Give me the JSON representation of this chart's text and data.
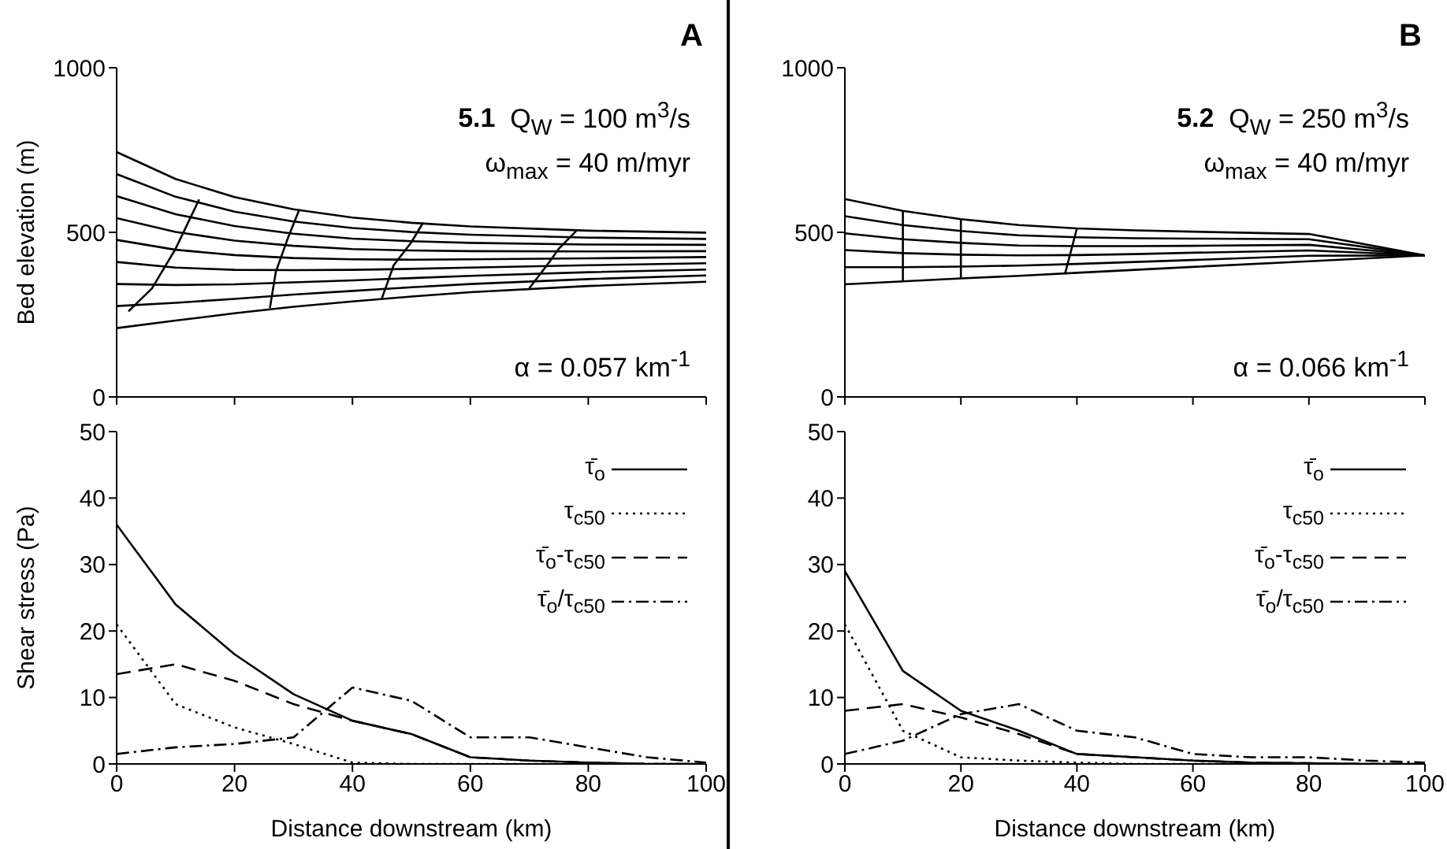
{
  "chart_data": [
    {
      "type": "line",
      "title": "A",
      "ylabel": "Bed elevation (m)",
      "annotations": [
        "5.1  Q$_{W}$ = 100 m$^{3}$/s",
        "ω$_{max}$ = 40 m/myr",
        "α = 0.057 km$^{-1}$"
      ],
      "x": [
        0,
        10,
        20,
        30,
        40,
        50,
        60,
        80,
        100
      ],
      "xlim": [
        0,
        100
      ],
      "xticks": [
        {
          "value": 0,
          "label": null
        },
        {
          "value": 20,
          "label": null
        },
        {
          "value": 40,
          "label": null
        },
        {
          "value": 60,
          "label": null
        },
        {
          "value": 80,
          "label": null
        },
        {
          "value": 100,
          "label": null
        }
      ],
      "ylim": [
        0,
        1000
      ],
      "yticks": [
        0,
        500,
        1000
      ],
      "tick_labels": "y",
      "series": [
        {
          "color": "#000000",
          "line_style": "solid",
          "values": [
            744,
            662,
            607,
            570,
            545,
            529,
            518,
            505,
            499
          ]
        },
        {
          "color": "#000000",
          "line_style": "solid",
          "values": [
            677,
            608,
            563,
            533,
            513,
            501,
            493,
            484,
            480
          ]
        },
        {
          "color": "#000000",
          "line_style": "solid",
          "values": [
            610,
            555,
            519,
            496,
            481,
            473,
            468,
            463,
            462
          ]
        },
        {
          "color": "#000000",
          "line_style": "solid",
          "values": [
            543,
            501,
            475,
            459,
            449,
            445,
            443,
            442,
            443
          ]
        },
        {
          "color": "#000000",
          "line_style": "solid",
          "values": [
            477,
            447,
            431,
            422,
            418,
            417,
            418,
            421,
            425
          ]
        },
        {
          "color": "#000000",
          "line_style": "solid",
          "values": [
            410,
            393,
            386,
            385,
            386,
            389,
            393,
            400,
            406
          ]
        },
        {
          "color": "#000000",
          "line_style": "solid",
          "values": [
            343,
            340,
            342,
            348,
            354,
            361,
            368,
            379,
            387
          ]
        },
        {
          "color": "#000000",
          "line_style": "solid",
          "values": [
            276,
            286,
            298,
            311,
            322,
            333,
            343,
            358,
            369
          ]
        },
        {
          "color": "#000000",
          "line_style": "solid",
          "values": [
            209,
            232,
            254,
            274,
            290,
            305,
            318,
            337,
            350
          ]
        },
        {
          "color": "#000000",
          "line_style": "solid",
          "x": [
            2,
            6,
            10,
            14
          ],
          "values": [
            260,
            330,
            450,
            600
          ]
        },
        {
          "color": "#000000",
          "line_style": "solid",
          "x": [
            26,
            27,
            29,
            31
          ],
          "values": [
            270,
            380,
            480,
            570
          ]
        },
        {
          "color": "#000000",
          "line_style": "solid",
          "x": [
            45,
            47,
            50,
            52
          ],
          "values": [
            300,
            400,
            470,
            530
          ]
        },
        {
          "color": "#000000",
          "line_style": "solid",
          "x": [
            70,
            73,
            75,
            78
          ],
          "values": [
            330,
            400,
            450,
            505
          ]
        }
      ]
    },
    {
      "type": "line",
      "title": "B",
      "annotations": [
        "5.2  Q$_{W}$ = 250 m$^{3}$/s",
        "ω$_{max}$ = 40 m/myr",
        "α = 0.066 km$^{-1}$"
      ],
      "x": [
        0,
        10,
        20,
        30,
        40,
        50,
        60,
        80,
        100
      ],
      "xlim": [
        0,
        100
      ],
      "xticks": [
        {
          "value": 0,
          "label": null
        },
        {
          "value": 20,
          "label": null
        },
        {
          "value": 40,
          "label": null
        },
        {
          "value": 60,
          "label": null
        },
        {
          "value": 80,
          "label": null
        },
        {
          "value": 100,
          "label": null
        }
      ],
      "ylim": [
        0,
        1000
      ],
      "yticks": [
        0,
        500,
        1000
      ],
      "tick_labels": "y",
      "series": [
        {
          "color": "#000000",
          "line_style": "solid",
          "values": [
            601,
            565,
            540,
            522,
            512,
            506,
            502,
            495,
            430
          ]
        },
        {
          "color": "#000000",
          "line_style": "solid",
          "values": [
            549,
            522,
            504,
            491,
            485,
            482,
            481,
            479,
            430
          ]
        },
        {
          "color": "#000000",
          "line_style": "solid",
          "values": [
            497,
            479,
            468,
            460,
            458,
            458,
            459,
            462,
            430
          ]
        },
        {
          "color": "#000000",
          "line_style": "solid",
          "values": [
            446,
            437,
            432,
            430,
            431,
            434,
            438,
            445,
            430
          ]
        },
        {
          "color": "#000000",
          "line_style": "solid",
          "values": [
            394,
            394,
            396,
            399,
            404,
            410,
            416,
            429,
            430
          ]
        },
        {
          "color": "#000000",
          "line_style": "solid",
          "values": [
            342,
            351,
            360,
            368,
            377,
            386,
            395,
            412,
            430
          ]
        },
        {
          "color": "#000000",
          "line_style": "solid",
          "x": [
            10,
            10
          ],
          "values": [
            351,
            565
          ]
        },
        {
          "color": "#000000",
          "line_style": "solid",
          "x": [
            20,
            20
          ],
          "values": [
            360,
            540
          ]
        },
        {
          "color": "#000000",
          "line_style": "solid",
          "x": [
            38,
            40
          ],
          "values": [
            377,
            512
          ]
        }
      ]
    },
    {
      "type": "line",
      "xlabel": "Distance downstream (km)",
      "ylabel": "Shear stress (Pa)",
      "x": [
        0,
        10,
        20,
        30,
        40,
        50,
        60,
        70,
        80,
        90,
        100
      ],
      "xlim": [
        0,
        100
      ],
      "xticks": [
        0,
        20,
        40,
        60,
        80,
        100
      ],
      "ylim": [
        0,
        50
      ],
      "yticks": [
        0,
        10,
        20,
        30,
        40,
        50
      ],
      "legend": "top right",
      "series": [
        {
          "name": "τ̄$_{o}$",
          "color": "#000000",
          "line_style": "solid",
          "values": [
            36,
            24,
            16.5,
            10.5,
            6.5,
            4.5,
            1,
            0.5,
            0.2,
            0,
            0
          ]
        },
        {
          "name": "τ$_{c50}$",
          "color": "#000000",
          "line_style": "dotted",
          "values": [
            21,
            9,
            5.5,
            3,
            0.2,
            0,
            0,
            0,
            0,
            0,
            0
          ]
        },
        {
          "name": "τ̄$_{o}$-τ$_{c50}$",
          "color": "#000000",
          "line_style": "dashed",
          "values": [
            13.5,
            15,
            12.5,
            9,
            6.5,
            4.5,
            1,
            0.5,
            0.2,
            0,
            0
          ]
        },
        {
          "name": "τ̄$_{o}$/τ$_{c50}$",
          "color": "#000000",
          "line_style": "dashdot",
          "values": [
            1.5,
            2.5,
            3,
            4,
            11.5,
            9.5,
            4,
            4,
            2.5,
            1,
            0.2
          ]
        }
      ]
    },
    {
      "type": "line",
      "xlabel": "Distance downstream (km)",
      "x": [
        0,
        10,
        20,
        30,
        40,
        50,
        60,
        70,
        80,
        90,
        100
      ],
      "xlim": [
        0,
        100
      ],
      "xticks": [
        0,
        20,
        40,
        60,
        80,
        100
      ],
      "ylim": [
        0,
        50
      ],
      "yticks": [
        0,
        10,
        20,
        30,
        40,
        50
      ],
      "legend": "top right",
      "series": [
        {
          "name": "τ̄$_{o}$",
          "color": "#000000",
          "line_style": "solid",
          "values": [
            29,
            14,
            8,
            5,
            1.5,
            1,
            0.5,
            0.2,
            0.1,
            0,
            0
          ]
        },
        {
          "name": "τ$_{c50}$",
          "color": "#000000",
          "line_style": "dotted",
          "values": [
            21,
            5,
            1,
            0.5,
            0.2,
            0,
            0,
            0,
            0,
            0,
            0
          ]
        },
        {
          "name": "τ̄$_{o}$-τ$_{c50}$",
          "color": "#000000",
          "line_style": "dashed",
          "values": [
            8,
            9,
            7,
            4.5,
            1.5,
            1,
            0.5,
            0.2,
            0.1,
            0,
            0
          ]
        },
        {
          "name": "τ̄$_{o}$/τ$_{c50}$",
          "color": "#000000",
          "line_style": "dashdot",
          "values": [
            1.5,
            3.5,
            7.5,
            9,
            5,
            4,
            1.5,
            1,
            1,
            0.5,
            0.2
          ]
        }
      ]
    }
  ]
}
